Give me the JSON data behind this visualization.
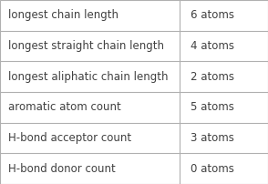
{
  "rows": [
    {
      "label": "longest chain length",
      "value": "6 atoms"
    },
    {
      "label": "longest straight chain length",
      "value": "4 atoms"
    },
    {
      "label": "longest aliphatic chain length",
      "value": "2 atoms"
    },
    {
      "label": "aromatic atom count",
      "value": "5 atoms"
    },
    {
      "label": "H-bond acceptor count",
      "value": "3 atoms"
    },
    {
      "label": "H-bond donor count",
      "value": "0 atoms"
    }
  ],
  "background_color": "#ffffff",
  "border_color": "#b0b0b0",
  "text_color": "#404040",
  "font_size": 8.5,
  "col_split": 0.67,
  "figsize": [
    2.94,
    2.02
  ],
  "dpi": 100
}
